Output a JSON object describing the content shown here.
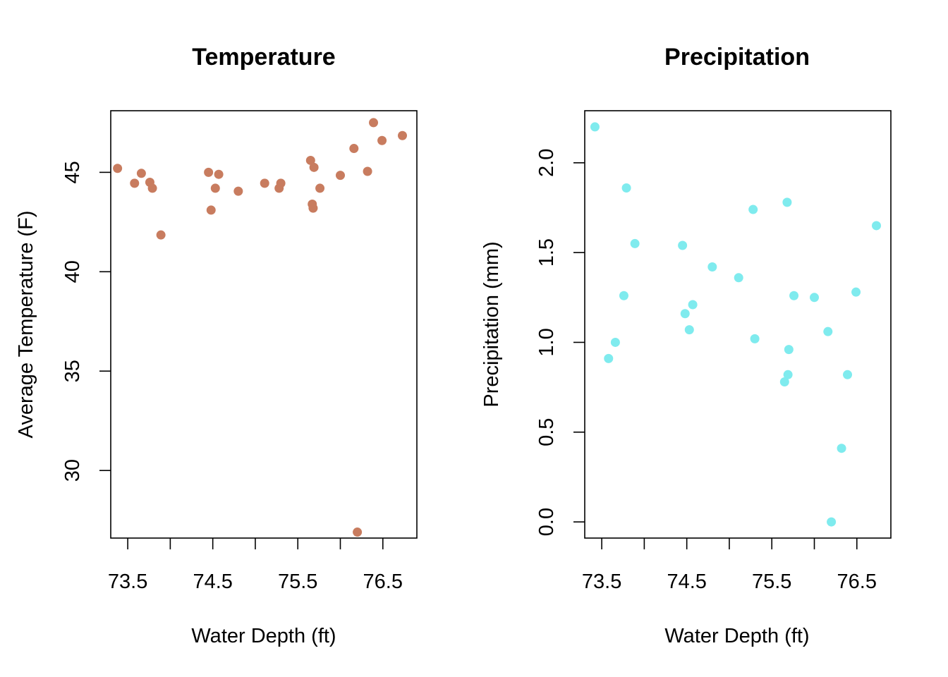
{
  "chart_data": [
    {
      "type": "scatter",
      "title": "Temperature",
      "xlabel": "Water Depth (ft)",
      "ylabel": "Average Temperature (F)",
      "xlim": [
        73.3,
        76.9
      ],
      "ylim": [
        26.6,
        48.1
      ],
      "xticks": [
        73.5,
        74.0,
        74.5,
        75.0,
        75.5,
        76.0,
        76.5
      ],
      "xtick_labels": [
        "73.5",
        "",
        "74.5",
        "",
        "75.5",
        "",
        "76.5"
      ],
      "yticks": [
        30,
        35,
        40,
        45
      ],
      "ytick_labels": [
        "30",
        "35",
        "40",
        "45"
      ],
      "color": "#C87C5F",
      "grid": false,
      "points": [
        {
          "x": 73.38,
          "y": 45.2
        },
        {
          "x": 73.58,
          "y": 44.45
        },
        {
          "x": 73.66,
          "y": 44.95
        },
        {
          "x": 73.76,
          "y": 44.5
        },
        {
          "x": 73.79,
          "y": 44.2
        },
        {
          "x": 73.89,
          "y": 41.85
        },
        {
          "x": 74.45,
          "y": 45.0
        },
        {
          "x": 74.48,
          "y": 43.1
        },
        {
          "x": 74.53,
          "y": 44.2
        },
        {
          "x": 74.57,
          "y": 44.9
        },
        {
          "x": 74.8,
          "y": 44.05
        },
        {
          "x": 75.11,
          "y": 44.45
        },
        {
          "x": 75.28,
          "y": 44.2
        },
        {
          "x": 75.3,
          "y": 44.45
        },
        {
          "x": 75.65,
          "y": 45.6
        },
        {
          "x": 75.67,
          "y": 43.4
        },
        {
          "x": 75.68,
          "y": 43.2
        },
        {
          "x": 75.69,
          "y": 45.25
        },
        {
          "x": 75.76,
          "y": 44.2
        },
        {
          "x": 76.0,
          "y": 44.85
        },
        {
          "x": 76.16,
          "y": 46.2
        },
        {
          "x": 76.2,
          "y": 26.9
        },
        {
          "x": 76.32,
          "y": 45.05
        },
        {
          "x": 76.39,
          "y": 47.5
        },
        {
          "x": 76.49,
          "y": 46.6
        },
        {
          "x": 76.73,
          "y": 46.85
        }
      ]
    },
    {
      "type": "scatter",
      "title": "Precipitation",
      "xlabel": "Water Depth (ft)",
      "ylabel": "Precipitation (mm)",
      "xlim": [
        73.3,
        76.9
      ],
      "ylim": [
        -0.09,
        2.29
      ],
      "xticks": [
        73.5,
        74.0,
        74.5,
        75.0,
        75.5,
        76.0,
        76.5
      ],
      "xtick_labels": [
        "73.5",
        "",
        "74.5",
        "",
        "75.5",
        "",
        "76.5"
      ],
      "yticks": [
        0.0,
        0.5,
        1.0,
        1.5,
        2.0
      ],
      "ytick_labels": [
        "0.0",
        "0.5",
        "1.0",
        "1.5",
        "2.0"
      ],
      "color": "#7FEBEE",
      "grid": false,
      "points": [
        {
          "x": 73.42,
          "y": 2.2
        },
        {
          "x": 73.58,
          "y": 0.91
        },
        {
          "x": 73.66,
          "y": 1.0
        },
        {
          "x": 73.76,
          "y": 1.26
        },
        {
          "x": 73.79,
          "y": 1.86
        },
        {
          "x": 73.89,
          "y": 1.55
        },
        {
          "x": 74.45,
          "y": 1.54
        },
        {
          "x": 74.48,
          "y": 1.16
        },
        {
          "x": 74.53,
          "y": 1.07
        },
        {
          "x": 74.57,
          "y": 1.21
        },
        {
          "x": 74.8,
          "y": 1.42
        },
        {
          "x": 75.11,
          "y": 1.36
        },
        {
          "x": 75.28,
          "y": 1.74
        },
        {
          "x": 75.3,
          "y": 1.02
        },
        {
          "x": 75.65,
          "y": 0.78
        },
        {
          "x": 75.68,
          "y": 1.78
        },
        {
          "x": 75.69,
          "y": 0.82
        },
        {
          "x": 75.7,
          "y": 0.96
        },
        {
          "x": 75.76,
          "y": 1.26
        },
        {
          "x": 76.0,
          "y": 1.25
        },
        {
          "x": 76.16,
          "y": 1.06
        },
        {
          "x": 76.2,
          "y": 0.0
        },
        {
          "x": 76.32,
          "y": 0.41
        },
        {
          "x": 76.39,
          "y": 0.82
        },
        {
          "x": 76.49,
          "y": 1.28
        },
        {
          "x": 76.73,
          "y": 1.65
        }
      ]
    }
  ]
}
